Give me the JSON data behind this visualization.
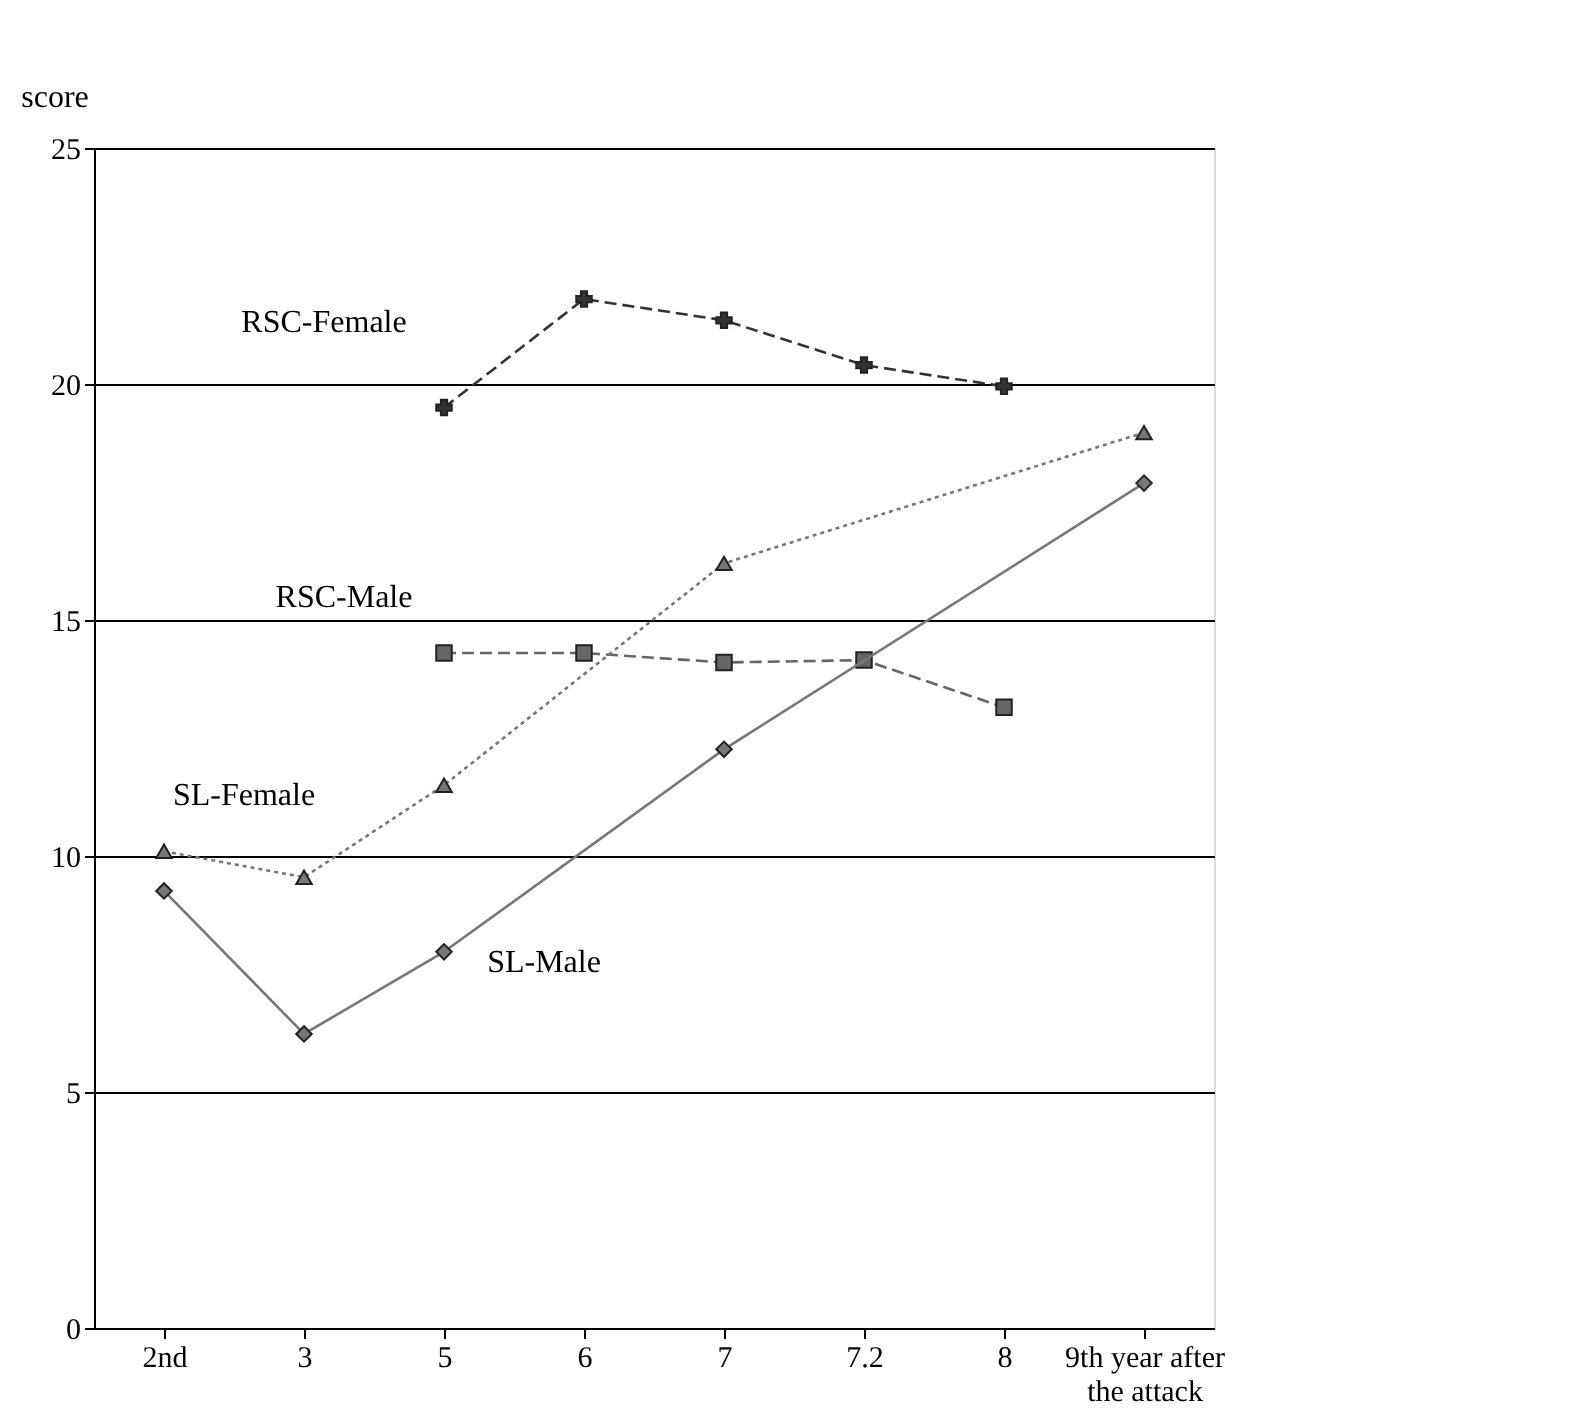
{
  "chart_data": {
    "type": "line",
    "ylabel": "score",
    "categories": [
      "2nd",
      "3",
      "5",
      "6",
      "7",
      "7.2",
      "8",
      "9th year after the attack"
    ],
    "series": [
      {
        "name": "RSC-Female",
        "color": "#333333",
        "marker": "cross",
        "line_style": "dashed",
        "values": [
          null,
          null,
          19.5,
          21.8,
          21.35,
          20.4,
          19.95,
          null
        ]
      },
      {
        "name": "RSC-Male",
        "color": "#666666",
        "marker": "square",
        "line_style": "dashed",
        "values": [
          null,
          null,
          14.3,
          14.3,
          14.1,
          14.15,
          13.15,
          null
        ]
      },
      {
        "name": "SL-Female",
        "color": "#777777",
        "marker": "triangle",
        "line_style": "dotted",
        "values": [
          10.1,
          9.55,
          11.5,
          null,
          16.2,
          null,
          null,
          18.97
        ]
      },
      {
        "name": "SL-Male",
        "color": "#777777",
        "marker": "diamond",
        "line_style": "solid",
        "values": [
          9.26,
          6.23,
          7.97,
          null,
          12.26,
          null,
          null,
          17.9
        ]
      }
    ],
    "ylim": [
      0,
      25
    ],
    "yticks": [
      0,
      5,
      10,
      15,
      20,
      25
    ],
    "grid": "y",
    "legend": false
  }
}
